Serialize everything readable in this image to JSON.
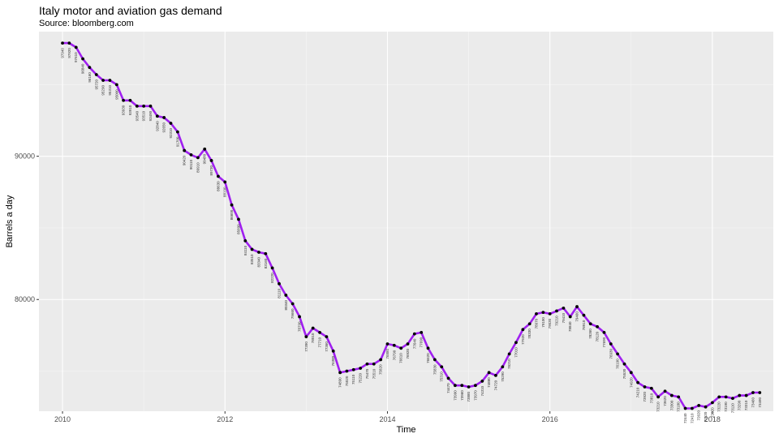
{
  "chart_data": {
    "type": "line",
    "title": "Italy motor and aviation gas demand",
    "subtitle": "Source: bloomberg.com",
    "xlabel": "Time",
    "ylabel": "Barrels a day",
    "xlim": [
      2009.71,
      2018.75
    ],
    "ylim": [
      72200,
      98700
    ],
    "x_ticks": [
      2010,
      2012,
      2014,
      2016,
      2018
    ],
    "x_tick_labels": [
      "2010",
      "2012",
      "2014",
      "2016",
      "2018"
    ],
    "y_ticks": [
      80000,
      90000
    ],
    "y_tick_labels": [
      "80000",
      "90000"
    ],
    "grid": true,
    "legend": "none",
    "series": [
      {
        "color": "#a020f0",
        "point_color": "#000000",
        "x": [
          2010.0,
          2010.083,
          2010.167,
          2010.25,
          2010.333,
          2010.417,
          2010.5,
          2010.583,
          2010.667,
          2010.75,
          2010.833,
          2010.917,
          2011.0,
          2011.083,
          2011.167,
          2011.25,
          2011.333,
          2011.417,
          2011.5,
          2011.583,
          2011.667,
          2011.75,
          2011.833,
          2011.917,
          2012.0,
          2012.083,
          2012.167,
          2012.25,
          2012.333,
          2012.417,
          2012.5,
          2012.583,
          2012.667,
          2012.75,
          2012.833,
          2012.917,
          2013.0,
          2013.083,
          2013.167,
          2013.25,
          2013.333,
          2013.417,
          2013.5,
          2013.583,
          2013.667,
          2013.75,
          2013.833,
          2013.917,
          2014.0,
          2014.083,
          2014.167,
          2014.25,
          2014.333,
          2014.417,
          2014.5,
          2014.583,
          2014.667,
          2014.75,
          2014.833,
          2014.917,
          2015.0,
          2015.083,
          2015.167,
          2015.25,
          2015.333,
          2015.417,
          2015.5,
          2015.583,
          2015.667,
          2015.75,
          2015.833,
          2015.917,
          2016.0,
          2016.083,
          2016.167,
          2016.25,
          2016.333,
          2016.417,
          2016.5,
          2016.583,
          2016.667,
          2016.75,
          2016.833,
          2016.917,
          2017.0,
          2017.083,
          2017.167,
          2017.25,
          2017.333,
          2017.417,
          2017.5,
          2017.583,
          2017.667,
          2017.75,
          2017.833,
          2017.917,
          2018.0,
          2018.083,
          2018.167,
          2018.25,
          2018.333,
          2018.417,
          2018.5,
          2018.583
        ],
        "y": [
          97900,
          97900,
          97600,
          96800,
          96200,
          95700,
          95300,
          95300,
          95000,
          93900,
          93900,
          93500,
          93500,
          93500,
          92800,
          92700,
          92300,
          91700,
          90400,
          90100,
          89900,
          90500,
          89700,
          88600,
          88200,
          86600,
          85600,
          84100,
          83500,
          83300,
          83200,
          82200,
          81100,
          80300,
          79700,
          78800,
          77400,
          78000,
          77700,
          77400,
          76400,
          74900,
          75000,
          75100,
          75200,
          75500,
          75500,
          75800,
          76900,
          76800,
          76600,
          76900,
          77600,
          77700,
          76600,
          75800,
          75300,
          74500,
          74000,
          74000,
          73900,
          74000,
          74300,
          74900,
          74700,
          75300,
          76200,
          77000,
          77900,
          78300,
          79000,
          79100,
          79000,
          79200,
          79400,
          78800,
          79500,
          78900,
          78300,
          78100,
          77700,
          76900,
          76200,
          75500,
          74900,
          74200,
          73900,
          73800,
          73200,
          73600,
          73300,
          73200,
          72400,
          72400,
          72600,
          72500,
          72800,
          73200,
          73200,
          73100,
          73300,
          73300,
          73500,
          73500
        ],
        "point_labels": [
          "97940",
          "97920",
          "97610",
          "96840",
          "96160",
          "95720",
          "95290",
          "95310",
          "95000",
          "93930",
          "93910",
          "93540",
          "93510",
          "93490",
          "92840",
          "92650",
          "92310",
          "91700",
          "90420",
          "90110",
          "89910",
          "90480",
          "89730",
          "88630",
          "88190",
          "86600",
          "85600",
          "84110",
          "83510",
          "83340",
          "83160",
          "82220",
          "81110",
          "80340",
          "79660",
          "78790",
          "77390",
          "78010",
          "77710",
          "77360",
          "76380",
          "74890",
          "75020",
          "75110",
          "75220",
          "75470",
          "75510",
          "75820",
          "76880",
          "76790",
          "76610",
          "76920",
          "77640",
          "77690",
          "76620",
          "75830",
          "75310",
          "74470",
          "73990",
          "73960",
          "73880",
          "73970",
          "74310",
          "74880",
          "74720",
          "75290",
          "76210",
          "77010",
          "77920",
          "78330",
          "78970",
          "79100",
          "79030",
          "79210",
          "79410",
          "78840",
          "79460",
          "78910",
          "78260",
          "78120",
          "77690",
          "76930",
          "76190",
          "75530",
          "74920",
          "74210",
          "73920",
          "73810",
          "73210",
          "73620",
          "73300",
          "73180",
          "72440",
          "72410",
          "72620",
          "72520",
          "72820",
          "73220",
          "73190",
          "73110",
          "73290",
          "73310",
          "73460",
          "73490"
        ]
      }
    ]
  }
}
